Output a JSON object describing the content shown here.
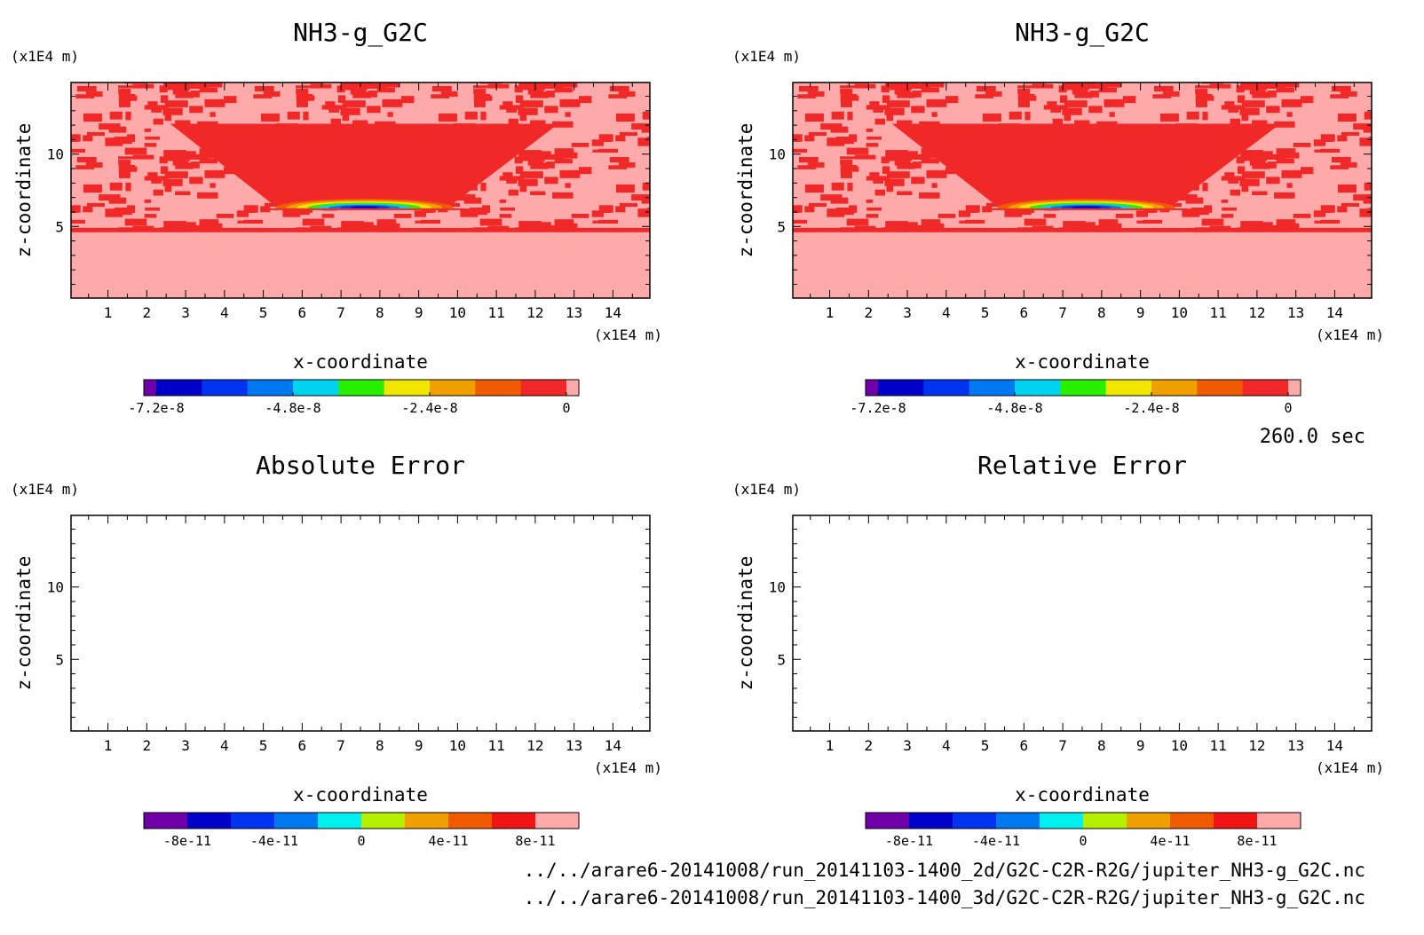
{
  "time_label": "260.0 sec",
  "files": [
    "../../arare6-20141008/run_20141103-1400_2d/G2C-C2R-R2G/jupiter_NH3-g_G2C.nc",
    "../../arare6-20141008/run_20141103-1400_3d/G2C-C2R-R2G/jupiter_NH3-g_G2C.nc"
  ],
  "chart_data": [
    {
      "type": "heatmap",
      "title": "NH3-g_G2C",
      "xlabel": "x-coordinate",
      "ylabel": "z-coordinate",
      "x_unit": "(x1E4 m)",
      "y_unit": "(x1E4 m)",
      "xlim": [
        0.05,
        14.95
      ],
      "ylim": [
        0.05,
        14.95
      ],
      "xticks": [
        "1",
        "2",
        "3",
        "4",
        "5",
        "6",
        "7",
        "8",
        "9",
        "10",
        "11",
        "12",
        "13",
        "14"
      ],
      "yticks": [
        "5",
        "10"
      ],
      "grid": false,
      "field": "cloud_plume",
      "colorbar": {
        "colors": [
          "#7000a8",
          "#0000c8",
          "#0034f0",
          "#0078f0",
          "#00d2f0",
          "#28f000",
          "#f0e600",
          "#f0a000",
          "#f05a00",
          "#f02828",
          "#ffaaaa"
        ],
        "labels": [
          "-7.2e-8",
          "-4.8e-8",
          "-2.4e-8",
          "0"
        ]
      }
    },
    {
      "type": "heatmap",
      "title": "NH3-g_G2C",
      "xlabel": "x-coordinate",
      "ylabel": "z-coordinate",
      "x_unit": "(x1E4 m)",
      "y_unit": "(x1E4 m)",
      "xlim": [
        0.05,
        14.95
      ],
      "ylim": [
        0.05,
        14.95
      ],
      "xticks": [
        "1",
        "2",
        "3",
        "4",
        "5",
        "6",
        "7",
        "8",
        "9",
        "10",
        "11",
        "12",
        "13",
        "14"
      ],
      "yticks": [
        "5",
        "10"
      ],
      "grid": false,
      "field": "cloud_plume",
      "colorbar": {
        "colors": [
          "#7000a8",
          "#0000c8",
          "#0034f0",
          "#0078f0",
          "#00d2f0",
          "#28f000",
          "#f0e600",
          "#f0a000",
          "#f05a00",
          "#f02828",
          "#ffaaaa"
        ],
        "labels": [
          "-7.2e-8",
          "-4.8e-8",
          "-2.4e-8",
          "0"
        ]
      }
    },
    {
      "type": "heatmap",
      "title": "Absolute Error",
      "xlabel": "x-coordinate",
      "ylabel": "z-coordinate",
      "x_unit": "(x1E4 m)",
      "y_unit": "(x1E4 m)",
      "xlim": [
        0.05,
        14.95
      ],
      "ylim": [
        0.05,
        14.95
      ],
      "xticks": [
        "1",
        "2",
        "3",
        "4",
        "5",
        "6",
        "7",
        "8",
        "9",
        "10",
        "11",
        "12",
        "13",
        "14"
      ],
      "yticks": [
        "5",
        "10"
      ],
      "grid": false,
      "field": "empty",
      "colorbar": {
        "colors": [
          "#7000a8",
          "#0000c8",
          "#0034f0",
          "#0078f0",
          "#00f0f0",
          "#b4f000",
          "#f0a000",
          "#f05a00",
          "#f01414",
          "#ffaaaa"
        ],
        "labels": [
          "-8e-11",
          "-4e-11",
          "0",
          "4e-11",
          "8e-11"
        ]
      }
    },
    {
      "type": "heatmap",
      "title": "Relative Error",
      "xlabel": "x-coordinate",
      "ylabel": "z-coordinate",
      "x_unit": "(x1E4 m)",
      "y_unit": "(x1E4 m)",
      "xlim": [
        0.05,
        14.95
      ],
      "ylim": [
        0.05,
        14.95
      ],
      "xticks": [
        "1",
        "2",
        "3",
        "4",
        "5",
        "6",
        "7",
        "8",
        "9",
        "10",
        "11",
        "12",
        "13",
        "14"
      ],
      "yticks": [
        "5",
        "10"
      ],
      "grid": false,
      "field": "empty",
      "colorbar": {
        "colors": [
          "#7000a8",
          "#0000c8",
          "#0034f0",
          "#0078f0",
          "#00f0f0",
          "#b4f000",
          "#f0a000",
          "#f05a00",
          "#f01414",
          "#ffaaaa"
        ],
        "labels": [
          "-8e-11",
          "-4e-11",
          "0",
          "4e-11",
          "8e-11"
        ]
      }
    }
  ]
}
